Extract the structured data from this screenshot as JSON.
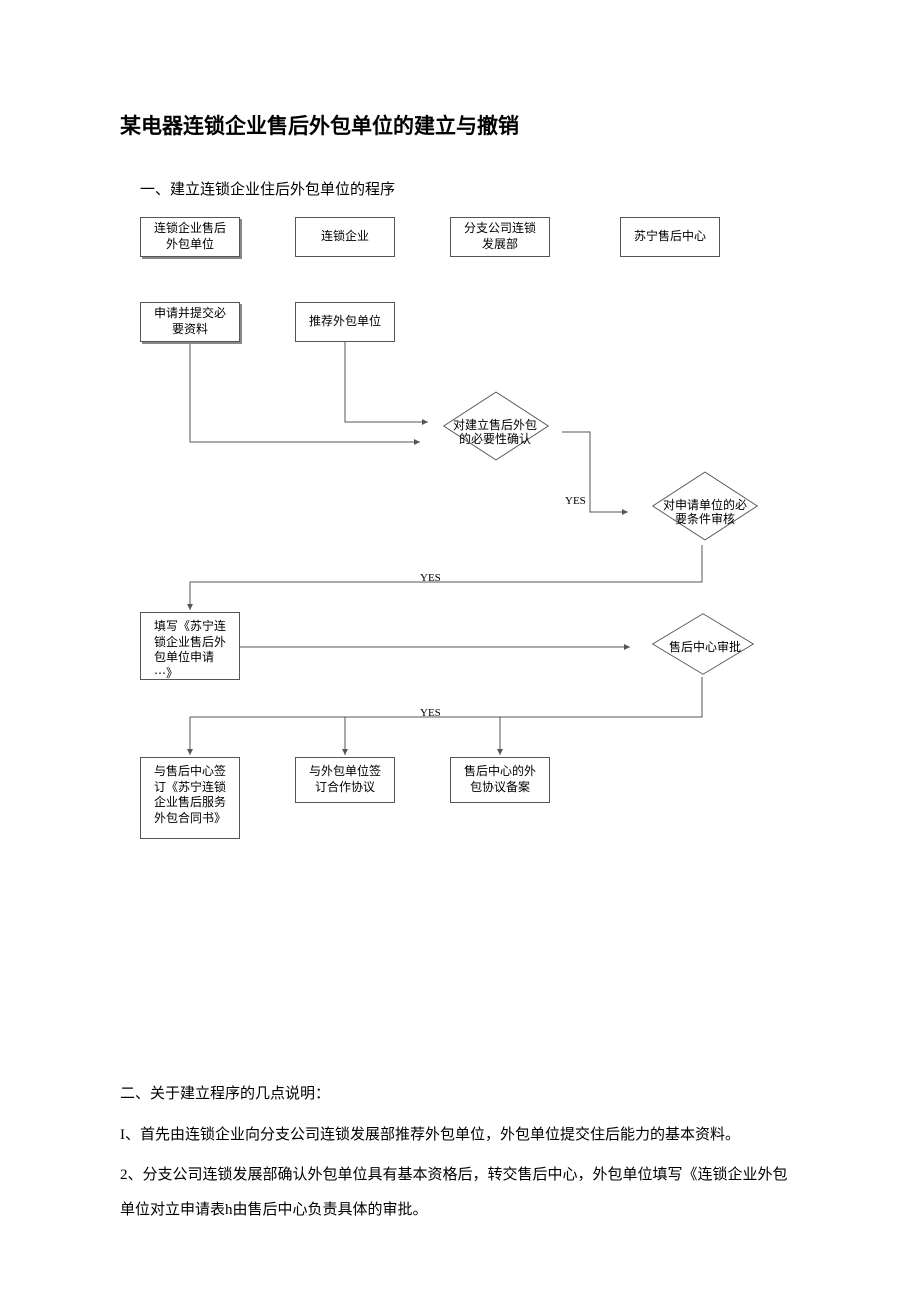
{
  "title": "某电器连锁企业售后外包单位的建立与撤销",
  "section1_heading": "一、建立连锁企业住后外包单位的程序",
  "flowchart": {
    "header": {
      "b1": "连锁企业售后\n外包单位",
      "b2": "连锁企业",
      "b3": "分支公司连锁\n发展部",
      "b4": "苏宁售后中心"
    },
    "row2": {
      "b1": "申请并提交必\n要资料",
      "b2": "推荐外包单位"
    },
    "diamond1": "对建立售后外包\n的必要性确认",
    "diamond2": "对申请单位的必\n要条件审核",
    "box_fill": "填写《苏宁连\n锁企业售后外\n包单位申请\n⋯》",
    "diamond3": "售后中心审批",
    "row_final": {
      "b1": "与售后中心签\n订《苏宁连锁\n企业售后服务\n外包合同书》",
      "b2": "与外包单位签\n订合作协议",
      "b3": "售后中心的外\n包协议备案"
    },
    "labels": {
      "yes1": "YES",
      "yes2": "YES",
      "yes3": "YES"
    },
    "colors": {
      "line": "#555555",
      "arrow": "#555555",
      "background": "#ffffff"
    }
  },
  "section2_heading": "二、关于建立程序的几点说明：",
  "para1": "I、首先由连锁企业向分支公司连锁发展部推荐外包单位，外包单位提交住后能力的基本资料。",
  "para2": "2、分支公司连锁发展部确认外包单位具有基本资格后，转交售后中心，外包单位填写《连锁企业外包单位对立申请表h由售后中心负责具体的审批。"
}
